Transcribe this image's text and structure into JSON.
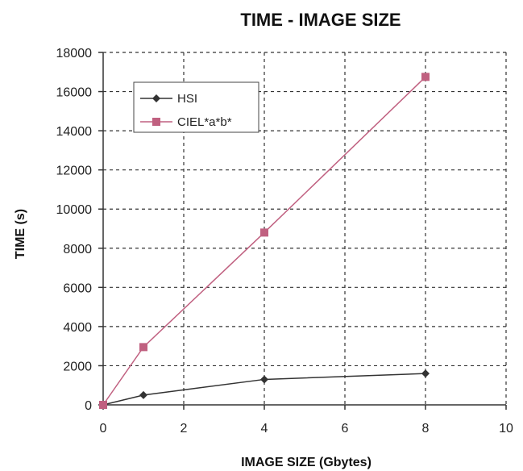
{
  "chart_data": {
    "type": "line",
    "title": "TIME - IMAGE SIZE",
    "xlabel": "IMAGE SIZE (Gbytes)",
    "ylabel": "TIME (s)",
    "xlim": [
      0,
      10
    ],
    "ylim": [
      0,
      18000
    ],
    "xticks": [
      0,
      2,
      4,
      6,
      8,
      10
    ],
    "yticks": [
      0,
      2000,
      4000,
      6000,
      8000,
      10000,
      12000,
      14000,
      16000,
      18000
    ],
    "xtick_labels": [
      "0",
      "2",
      "4",
      "6",
      "8",
      "10"
    ],
    "ytick_labels": [
      "0",
      "2000",
      "4000",
      "6000",
      "8000",
      "10000",
      "12000",
      "14000",
      "16000",
      "18000"
    ],
    "grid": true,
    "legend_position": "top-left",
    "x": [
      0,
      1,
      4,
      8
    ],
    "series": [
      {
        "name": "HSI",
        "color": "#333333",
        "marker": "diamond",
        "values": [
          0,
          500,
          1300,
          1600
        ]
      },
      {
        "name": "CIEL*a*b*",
        "color": "#c06080",
        "marker": "square",
        "values": [
          0,
          2950,
          8800,
          16750
        ]
      }
    ]
  }
}
